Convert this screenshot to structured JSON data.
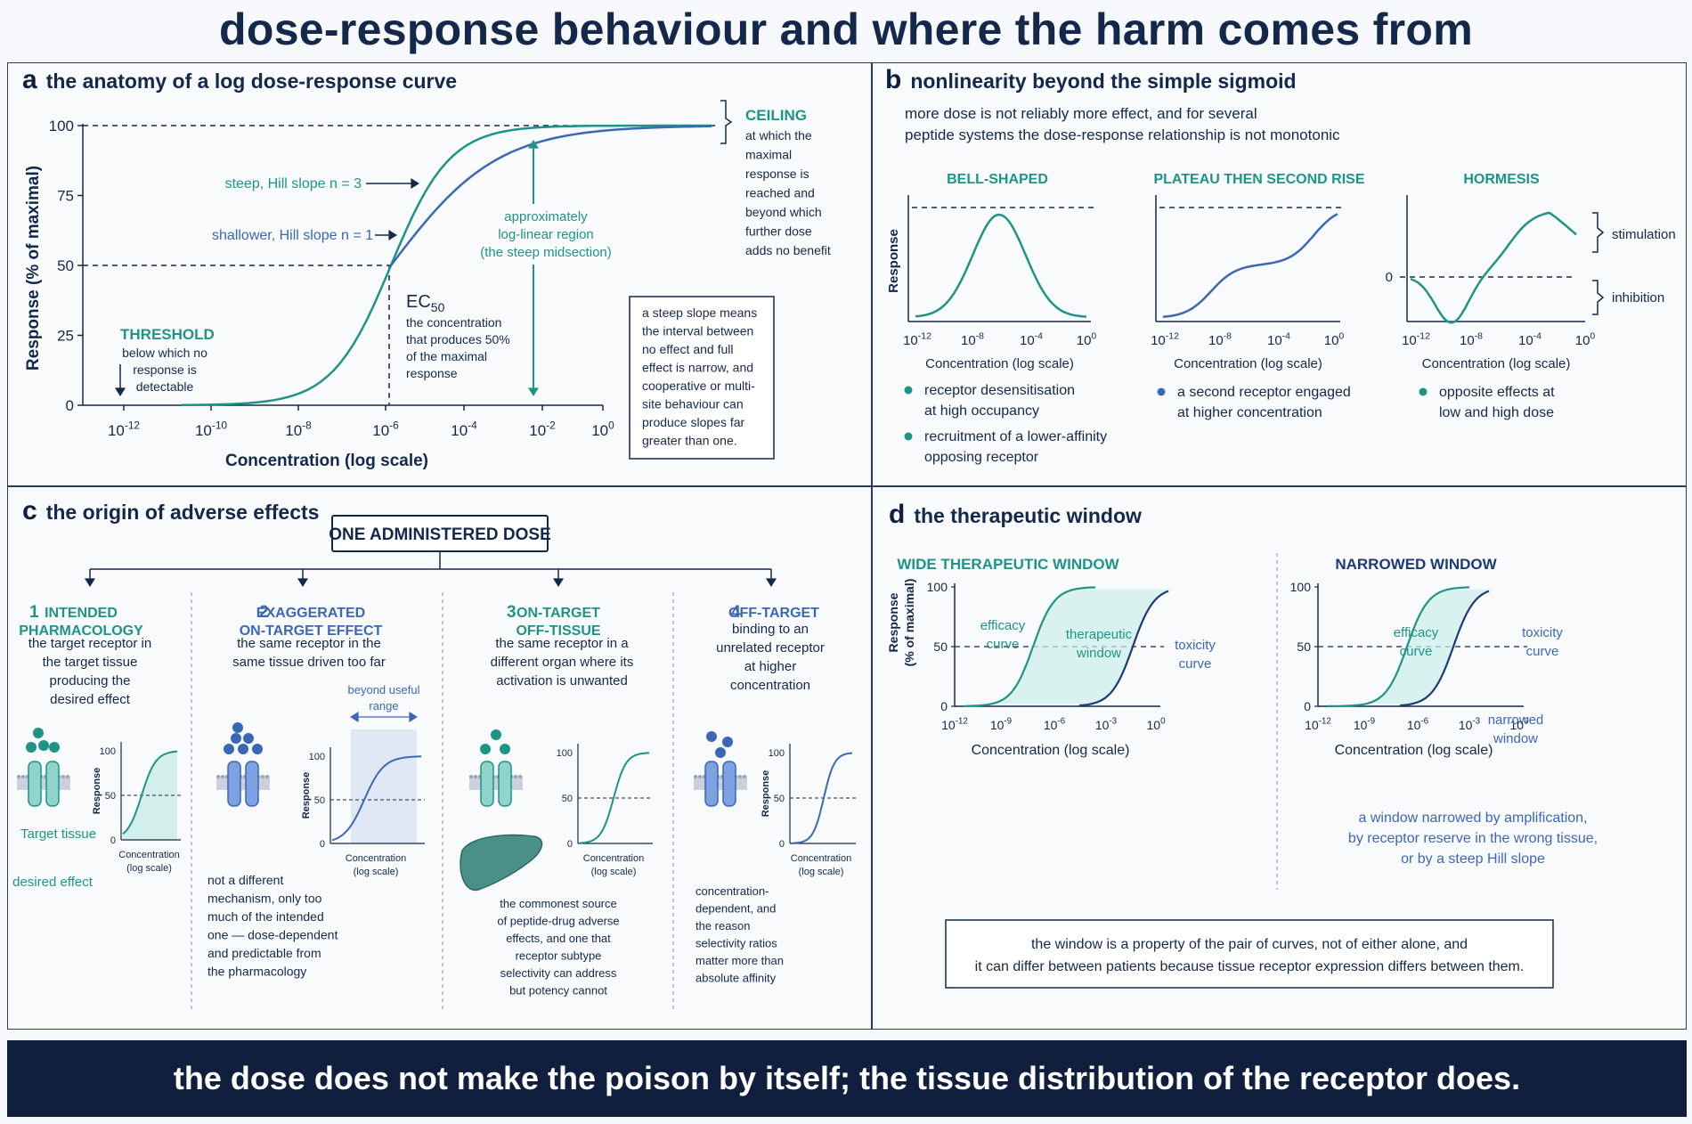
{
  "title": "dose-response behaviour and where the harm comes from",
  "colors": {
    "teal": "#1e9487",
    "blue": "#3c67b4",
    "navy": "#14284b",
    "darkblue": "#1d3a78"
  },
  "panel_a": {
    "letter": "a",
    "title": "the anatomy of a log dose-response curve",
    "ylabel": "Response (% of maximal)",
    "xlabel": "Concentration (log scale)",
    "yticks": [
      "100",
      "75",
      "50",
      "25",
      "0"
    ],
    "xticks_base": [
      "10",
      "10",
      "10",
      "10",
      "10",
      "10",
      "10"
    ],
    "xticks_exp": [
      "-12",
      "-10",
      "-8",
      "-6",
      "-4",
      "-2",
      "0"
    ],
    "steep_label": "steep, Hill slope n = 3",
    "shallow_label": "shallower, Hill slope n = 1",
    "loglinear": [
      "approximately",
      "log-linear region",
      "(the steep midsection)"
    ],
    "threshold_title": "THRESHOLD",
    "threshold_text": [
      "below which no",
      "response is",
      "detectable"
    ],
    "ec50_main": "EC",
    "ec50_sub": "50",
    "ec50_text": [
      "the concentration",
      "that produces 50%",
      "of the maximal",
      "response"
    ],
    "ceiling_title": "CEILING",
    "ceiling_text": [
      "at which the",
      "maximal",
      "response is",
      "reached and",
      "beyond which",
      "further dose",
      "adds no benefit"
    ],
    "box_text": [
      "a steep slope means",
      "the interval between",
      "no effect and full",
      "effect is narrow, and",
      "cooperative or multi-",
      "site behaviour can",
      "produce slopes far",
      "greater than one."
    ]
  },
  "panel_b": {
    "letter": "b",
    "title": "nonlinearity beyond the simple sigmoid",
    "subtitle": [
      "more dose is not reliably more effect, and for several",
      "peptide systems the dose-response relationship is not monotonic"
    ],
    "ylabel": "Response",
    "xlabel": "Concentration (log scale)",
    "xticks_exp": [
      "-12",
      "-8",
      "-4",
      "0"
    ],
    "xtick_base": "10",
    "zero_label": "0",
    "charts": [
      {
        "title": "BELL-SHAPED",
        "bullets": [
          [
            "receptor desensitisation",
            "at high occupancy"
          ],
          [
            "recruitment of a lower-affinity",
            "opposing receptor"
          ]
        ]
      },
      {
        "title": "PLATEAU THEN SECOND RISE",
        "bullets": [
          [
            "a second receptor engaged",
            "at higher concentration"
          ]
        ]
      },
      {
        "title": "HORMESIS",
        "bullets": [
          [
            "opposite effects at",
            "low and high dose"
          ]
        ]
      }
    ],
    "stimulation": "stimulation",
    "inhibition": "inhibition"
  },
  "panel_c": {
    "letter": "c",
    "title": "the origin of adverse effects",
    "dose_box": "ONE ADMINISTERED DOSE",
    "columns": [
      {
        "num": "1",
        "title": [
          "INTENDED",
          "PHARMACOLOGY"
        ],
        "desc": [
          "the target receptor in",
          "the target tissue",
          "producing the",
          "desired effect"
        ],
        "extra": [
          "Target tissue",
          "desired effect"
        ]
      },
      {
        "num": "2",
        "title": [
          "EXAGGERATED",
          "ON-TARGET EFFECT"
        ],
        "desc": [
          "the same receptor in the",
          "same tissue driven too far"
        ],
        "range_label": [
          "beyond useful",
          "range"
        ],
        "note": [
          "not a different",
          "mechanism, only too",
          "much of the intended",
          "one — dose-dependent",
          "and predictable from",
          "the pharmacology"
        ]
      },
      {
        "num": "3",
        "title": [
          "ON-TARGET",
          "OFF-TISSUE"
        ],
        "desc": [
          "the same receptor in a",
          "different organ where its",
          "activation is unwanted"
        ],
        "note": [
          "the commonest source",
          "of peptide-drug adverse",
          "effects, and one that",
          "receptor subtype",
          "selectivity can address",
          "but potency cannot"
        ]
      },
      {
        "num": "4",
        "title": [
          "OFF-TARGET"
        ],
        "desc": [
          "binding to an",
          "unrelated receptor",
          "at higher",
          "concentration"
        ],
        "note": [
          "concentration-",
          "dependent, and",
          "the reason",
          "selectivity ratios",
          "matter more than",
          "absolute affinity"
        ]
      }
    ],
    "mini_ylabel": "Response",
    "mini_xlabel": [
      "Concentration",
      "(log scale)"
    ],
    "mini_yticks": [
      "100",
      "50",
      "0"
    ]
  },
  "panel_d": {
    "letter": "d",
    "title": "the therapeutic window",
    "ylabel": [
      "Response",
      "(% of maximal)"
    ],
    "xlabel": "Concentration (log scale)",
    "yticks": [
      "100",
      "50",
      "0"
    ],
    "xticks_exp": [
      "-12",
      "-9",
      "-6",
      "-3",
      "0"
    ],
    "xtick_base": "10",
    "wide": {
      "title": "WIDE THERAPEUTIC WINDOW",
      "efficacy": [
        "efficacy",
        "curve"
      ],
      "window": [
        "therapeutic",
        "window"
      ],
      "toxicity": [
        "toxicity",
        "curve"
      ]
    },
    "narrow": {
      "title": "NARROWED WINDOW",
      "efficacy": [
        "efficacy",
        "curve"
      ],
      "toxicity": [
        "toxicity",
        "curve"
      ],
      "window": [
        "narrowed",
        "window"
      ],
      "caption": [
        "a window narrowed by amplification,",
        "by receptor reserve in the wrong tissue,",
        "or by a steep Hill slope"
      ]
    },
    "note": [
      "the window is a property of the pair of curves, not of either alone, and",
      "it can differ between patients because tissue receptor expression differs between them."
    ]
  },
  "footer": "the dose does not make the poison by itself; the tissue distribution of the receptor does."
}
